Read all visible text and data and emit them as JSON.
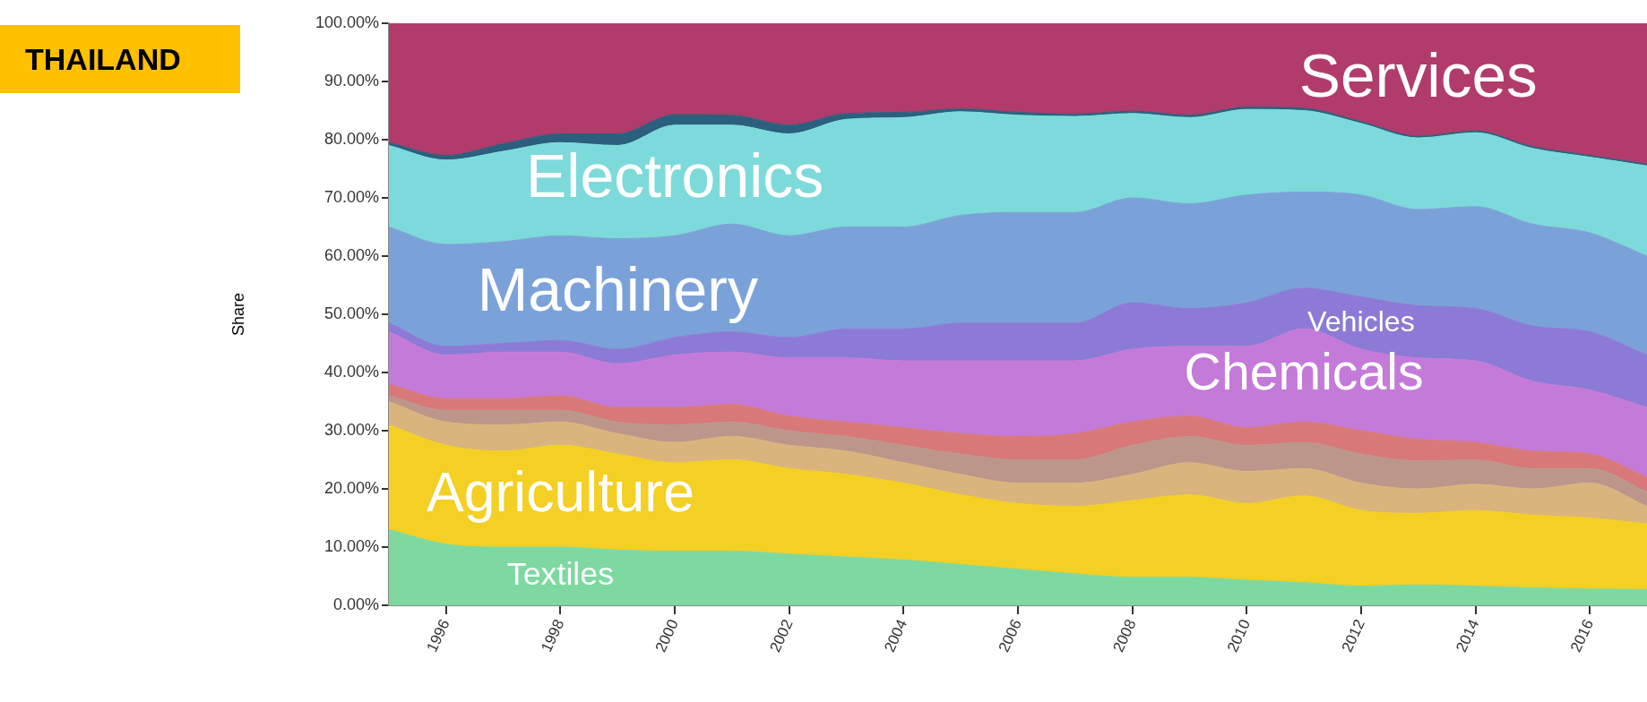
{
  "chart_data": {
    "type": "area",
    "title": "THAILAND",
    "ylabel": "Share",
    "stacked": true,
    "legend": false,
    "grid": false,
    "x": [
      1995,
      1996,
      1997,
      1998,
      1999,
      2000,
      2001,
      2002,
      2003,
      2004,
      2005,
      2006,
      2007,
      2008,
      2009,
      2010,
      2011,
      2012,
      2013,
      2014,
      2015,
      2016,
      2017
    ],
    "xlim": [
      1995,
      2017
    ],
    "xticks": [
      1996,
      1998,
      2000,
      2002,
      2004,
      2006,
      2008,
      2010,
      2012,
      2014,
      2016
    ],
    "ylim": [
      0,
      100
    ],
    "yticks": [
      {
        "value": 0,
        "label": "0.00%"
      },
      {
        "value": 10,
        "label": "10.00%"
      },
      {
        "value": 20,
        "label": "20.00%"
      },
      {
        "value": 30,
        "label": "30.00%"
      },
      {
        "value": 40,
        "label": "40.00%"
      },
      {
        "value": 50,
        "label": "50.00%"
      },
      {
        "value": 60,
        "label": "60.00%"
      },
      {
        "value": 70,
        "label": "70.00%"
      },
      {
        "value": 80,
        "label": "80.00%"
      },
      {
        "value": 90,
        "label": "90.00%"
      },
      {
        "value": 100,
        "label": "100.00%"
      }
    ],
    "series": [
      {
        "name": "Textiles",
        "color": "#7dd9a0",
        "values": [
          13,
          10.5,
          10,
          10,
          9.5,
          9.3,
          9.3,
          8.8,
          8.3,
          7.8,
          7,
          6.2,
          5.4,
          4.8,
          4.8,
          4.3,
          3.9,
          3.3,
          3.5,
          3.3,
          3.0,
          2.8,
          2.7
        ]
      },
      {
        "name": "Agriculture",
        "color": "#f4cf24",
        "values": [
          18,
          17,
          16.5,
          17.5,
          16.5,
          15.2,
          15.7,
          14.7,
          14.2,
          13.2,
          12,
          11.3,
          11.6,
          13.2,
          14.2,
          13.2,
          14.9,
          13,
          12.3,
          13,
          12.5,
          12.2,
          11.3
        ]
      },
      {
        "color": "#d9b47c",
        "values": [
          4,
          4,
          4.5,
          4,
          3.5,
          3.5,
          4,
          4,
          4,
          3.5,
          3.5,
          3.5,
          4,
          4.5,
          5.5,
          5.5,
          4.7,
          4.7,
          4.2,
          4.5,
          4.5,
          6,
          3
        ]
      },
      {
        "color": "#bc968a",
        "values": [
          1,
          2,
          2.5,
          2,
          2,
          3,
          2.5,
          2.5,
          2.5,
          3,
          3.5,
          4,
          4,
          5,
          4.5,
          4.5,
          4.5,
          5,
          4.8,
          4.2,
          3.5,
          2.5,
          2.5
        ]
      },
      {
        "color": "#d87878",
        "values": [
          2,
          2,
          2,
          2.5,
          2.5,
          3,
          3,
          2.5,
          2.5,
          3,
          3.5,
          4,
          4.5,
          4,
          3.5,
          3,
          3.5,
          4,
          3.7,
          3,
          3,
          2.5,
          2.5
        ]
      },
      {
        "name": "Chemicals",
        "color": "#c47ad8",
        "values": [
          9,
          7.5,
          8,
          7.5,
          7.5,
          9,
          9,
          10,
          11,
          11.5,
          12.5,
          13,
          12.5,
          12.5,
          12,
          14,
          16,
          14,
          14,
          14,
          12,
          11,
          12
        ]
      },
      {
        "name": "Vehicles",
        "color": "#8c7bd6",
        "values": [
          1.5,
          1.5,
          1.5,
          2,
          2.5,
          3,
          3.5,
          3.5,
          5,
          5.5,
          6.5,
          6.5,
          6.5,
          8,
          6.5,
          7.5,
          7,
          9,
          9,
          9,
          9.5,
          10,
          9
        ]
      },
      {
        "name": "Machinery",
        "color": "#7ba2d8",
        "values": [
          16.5,
          17.5,
          17.5,
          18,
          19,
          17.5,
          18.5,
          17.5,
          17.5,
          17.5,
          18.5,
          19,
          19,
          18,
          18,
          18.5,
          16.5,
          17.5,
          16.5,
          17.5,
          17.5,
          17,
          17
        ]
      },
      {
        "name": "Electronics",
        "color": "#7ddada",
        "values": [
          14,
          14.5,
          15.5,
          16,
          16,
          19,
          17,
          17.5,
          18.5,
          18.8,
          17.8,
          16.7,
          16.5,
          14.5,
          14.8,
          14.7,
          14,
          12.3,
          12.3,
          12.7,
          13,
          13,
          15.5
        ]
      },
      {
        "color": "#2b5f7e",
        "values": [
          0.5,
          0.8,
          1.3,
          1.5,
          2,
          1.8,
          1.7,
          1.5,
          1,
          0.9,
          0.5,
          0.5,
          0.4,
          0.4,
          0.4,
          0.4,
          0.4,
          0.3,
          0.3,
          0.3,
          0.3,
          0.3,
          0.3
        ]
      },
      {
        "name": "Services",
        "color": "#b13b6a",
        "values": [
          20.5,
          22.7,
          20.7,
          19,
          19,
          15.7,
          15.8,
          17.5,
          15.5,
          15.3,
          14.7,
          15.3,
          15.6,
          15.1,
          15.8,
          14.4,
          14.6,
          16.9,
          19.4,
          18.5,
          21.2,
          22.7,
          24.2
        ]
      }
    ]
  }
}
